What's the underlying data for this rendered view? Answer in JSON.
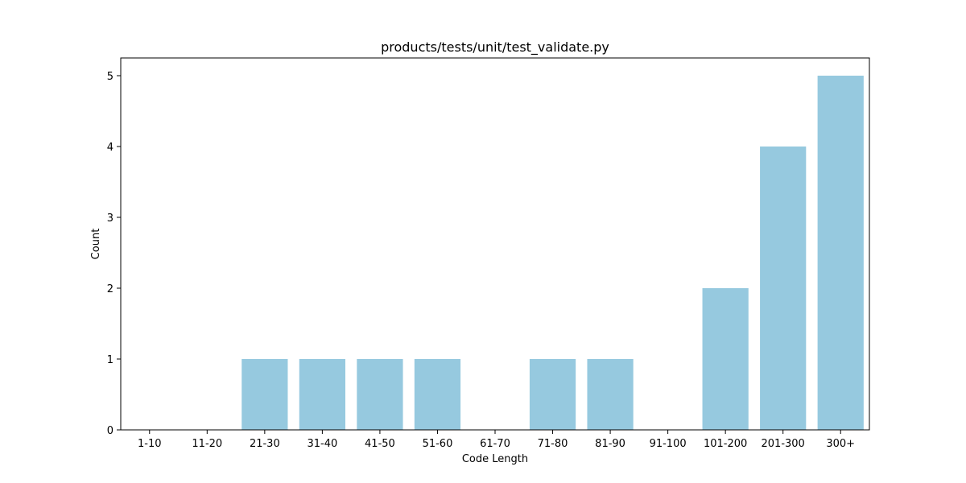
{
  "chart_data": {
    "type": "bar",
    "title": "products/tests/unit/test_validate.py",
    "xlabel": "Code Length",
    "ylabel": "Count",
    "categories": [
      "1-10",
      "11-20",
      "21-30",
      "31-40",
      "41-50",
      "51-60",
      "61-70",
      "71-80",
      "81-90",
      "91-100",
      "101-200",
      "201-300",
      "300+"
    ],
    "values": [
      0,
      0,
      1,
      1,
      1,
      1,
      0,
      1,
      1,
      0,
      2,
      4,
      5
    ],
    "ylim": [
      0,
      5.25
    ],
    "yticks": [
      "0",
      "1",
      "2",
      "3",
      "4",
      "5"
    ],
    "grid": false,
    "bar_color": "#96c9df"
  }
}
